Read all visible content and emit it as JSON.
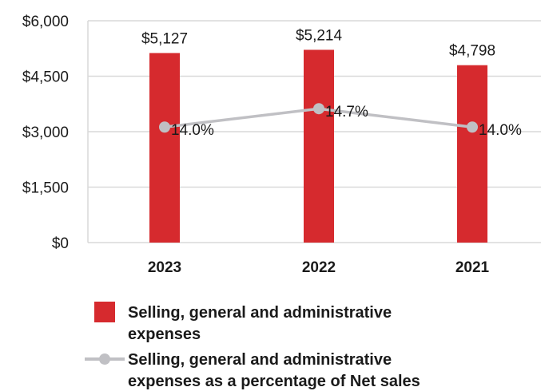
{
  "chart_data": {
    "type": "bar",
    "categories": [
      "2023",
      "2022",
      "2021"
    ],
    "y_ticks": [
      "$0",
      "$1,500",
      "$3,000",
      "$4,500",
      "$6,000"
    ],
    "ylim": [
      0,
      6000
    ],
    "grid": true,
    "legend_position": "bottom",
    "series": [
      {
        "name": "Selling, general and administrative expenses",
        "type": "bar",
        "values": [
          5127,
          5214,
          4798
        ],
        "labels": [
          "$5,127",
          "$5,214",
          "$4,798"
        ],
        "color": "#d62a2e"
      },
      {
        "name": "Selling, general and administrative expenses as a percentage of Net sales",
        "type": "line",
        "values": [
          14.0,
          14.7,
          14.0
        ],
        "labels": [
          "14.0%",
          "14.7%",
          "14.0%"
        ],
        "color": "#c0c0c4"
      }
    ],
    "legend": {
      "bar_lines": [
        "Selling, general and administrative",
        "expenses"
      ],
      "line_lines": [
        "Selling, general and administrative",
        "expenses as a percentage of Net sales"
      ]
    }
  }
}
